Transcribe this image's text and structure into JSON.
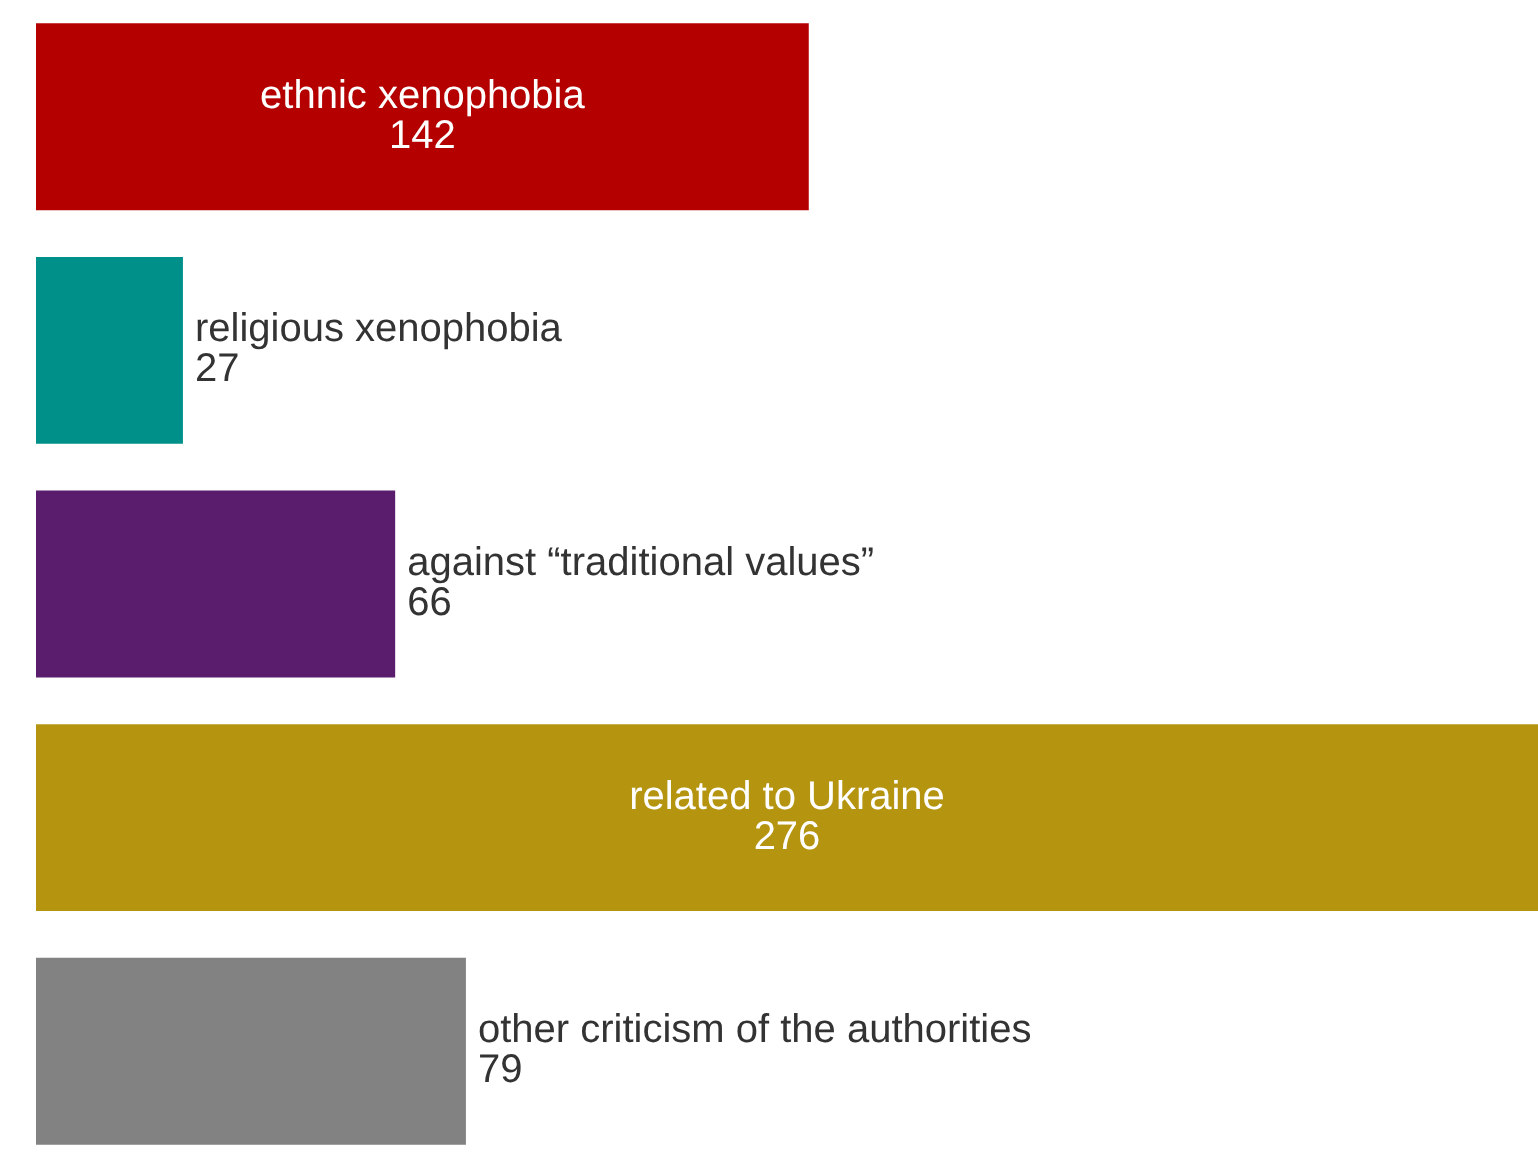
{
  "chart_data": {
    "type": "bar",
    "orientation": "horizontal",
    "categories": [
      "ethnic xenophobia",
      "religious xenophobia",
      "against “traditional values”",
      "related to Ukraine",
      "other criticism of the authorities"
    ],
    "values": [
      142,
      27,
      66,
      276,
      79
    ],
    "colors": [
      "#b50000",
      "#00908a",
      "#5a1d6e",
      "#b59410",
      "#828282"
    ],
    "data_labels": true
  }
}
